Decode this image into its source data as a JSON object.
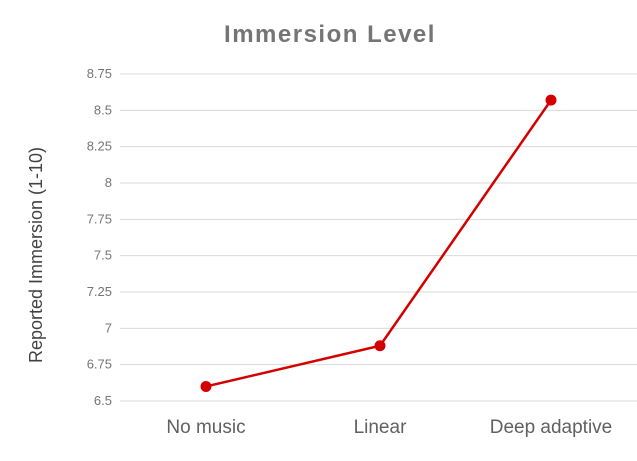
{
  "chart_data": {
    "type": "line",
    "title": "Immersion Level",
    "xlabel": "",
    "ylabel": "Reported Immersion (1-10)",
    "categories": [
      "No music",
      "Linear",
      "Deep adaptive"
    ],
    "series": [
      {
        "values": [
          6.6,
          6.88,
          8.57
        ]
      }
    ],
    "ylim": [
      6.5,
      8.75
    ],
    "yticks": [
      "6.5",
      "6.75",
      "7",
      "7.25",
      "7.5",
      "7.75",
      "8",
      "8.25",
      "8.5",
      "8.75"
    ],
    "grid": true,
    "legend": "none",
    "colors": {
      "line": "#d40000",
      "grid": "#d9d9d9"
    }
  }
}
